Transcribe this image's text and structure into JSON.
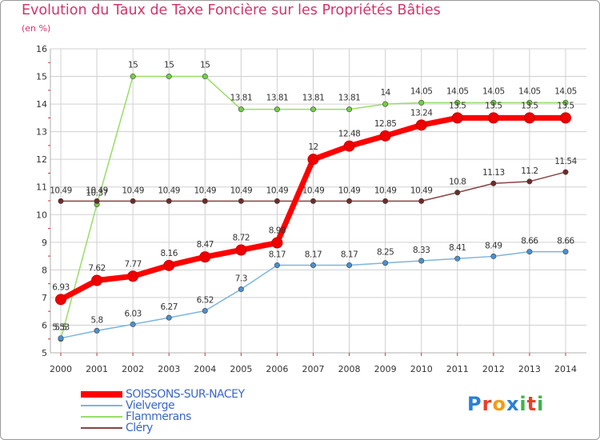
{
  "title": "Evolution du Taux de Taxe Foncière sur les Propriétés Bâties",
  "subtitle": "(en %)",
  "logo": {
    "text": "Proxiti",
    "colors": [
      "#2b7fd4",
      "#e8402a",
      "#f39c12",
      "#2b7fd4",
      "#3ab54a",
      "#e8402a",
      "#3ab54a"
    ]
  },
  "chart_data": {
    "type": "line",
    "title": "Evolution du Taux de Taxe Foncière sur les Propriétés Bâties",
    "ylabel": "(en %)",
    "xlabel": "",
    "categories": [
      "2000",
      "2001",
      "2002",
      "2003",
      "2004",
      "2005",
      "2006",
      "2007",
      "2008",
      "2009",
      "2010",
      "2011",
      "2012",
      "2013",
      "2014"
    ],
    "ylim": [
      5,
      16
    ],
    "yticks": [
      5,
      6,
      7,
      8,
      9,
      10,
      11,
      12,
      13,
      14,
      15,
      16
    ],
    "grid": true,
    "legend_position": "bottom-left",
    "series": [
      {
        "name": "SOISSONS-SUR-NACEY",
        "color": "#ff0000",
        "width": 7,
        "marker_r": 6.5,
        "marker_fill": "#ee0000",
        "values": [
          6.93,
          7.62,
          7.77,
          8.16,
          8.47,
          8.72,
          8.98,
          12,
          12.48,
          12.85,
          13.24,
          13.5,
          13.5,
          13.5,
          13.5
        ],
        "labels": [
          "6.93",
          "7.62",
          "7.77",
          "8.16",
          "8.47",
          "8.72",
          "8.98",
          "12",
          "12.48",
          "12.85",
          "13.24",
          "13.5",
          "13.5",
          "13.5",
          "13.5"
        ]
      },
      {
        "name": "Vielverge",
        "color": "#7cb4e0",
        "width": 1.5,
        "marker_r": 3.2,
        "marker_fill": "#4a90d0",
        "values": [
          5.53,
          5.8,
          6.03,
          6.27,
          6.52,
          7.3,
          8.17,
          8.17,
          8.17,
          8.25,
          8.33,
          8.41,
          8.49,
          8.66,
          8.66
        ],
        "labels": [
          "5.53",
          "5.8",
          "6.03",
          "6.27",
          "6.52",
          "7.3",
          "8.17",
          "8.17",
          "8.17",
          "8.25",
          "8.33",
          "8.41",
          "8.49",
          "8.66",
          "8.66"
        ]
      },
      {
        "name": "Flammerans",
        "color": "#99dd66",
        "width": 1.5,
        "marker_r": 3.2,
        "marker_fill": "#77cc44",
        "values": [
          5.5,
          10.37,
          15,
          15,
          15,
          13.81,
          13.81,
          13.81,
          13.81,
          14,
          14.05,
          14.05,
          14.05,
          14.05,
          14.05
        ],
        "labels": [
          "5.5",
          "10.37",
          "15",
          "15",
          "15",
          "13.81",
          "13.81",
          "13.81",
          "13.81",
          "14",
          "14.05",
          "14.05",
          "14.05",
          "14.05",
          "14.05"
        ]
      },
      {
        "name": "Cléry",
        "color": "#884444",
        "width": 1.5,
        "marker_r": 3.2,
        "marker_fill": "#6e2a2a",
        "values": [
          10.49,
          10.49,
          10.49,
          10.49,
          10.49,
          10.49,
          10.49,
          10.49,
          10.49,
          10.49,
          10.49,
          10.8,
          11.13,
          11.2,
          11.54
        ],
        "labels": [
          "10.49",
          "10.49",
          "10.49",
          "10.49",
          "10.49",
          "10.49",
          "10.49",
          "10.49",
          "10.49",
          "10.49",
          "10.49",
          "10.8",
          "11.13",
          "11.2",
          "11.54"
        ]
      }
    ]
  }
}
